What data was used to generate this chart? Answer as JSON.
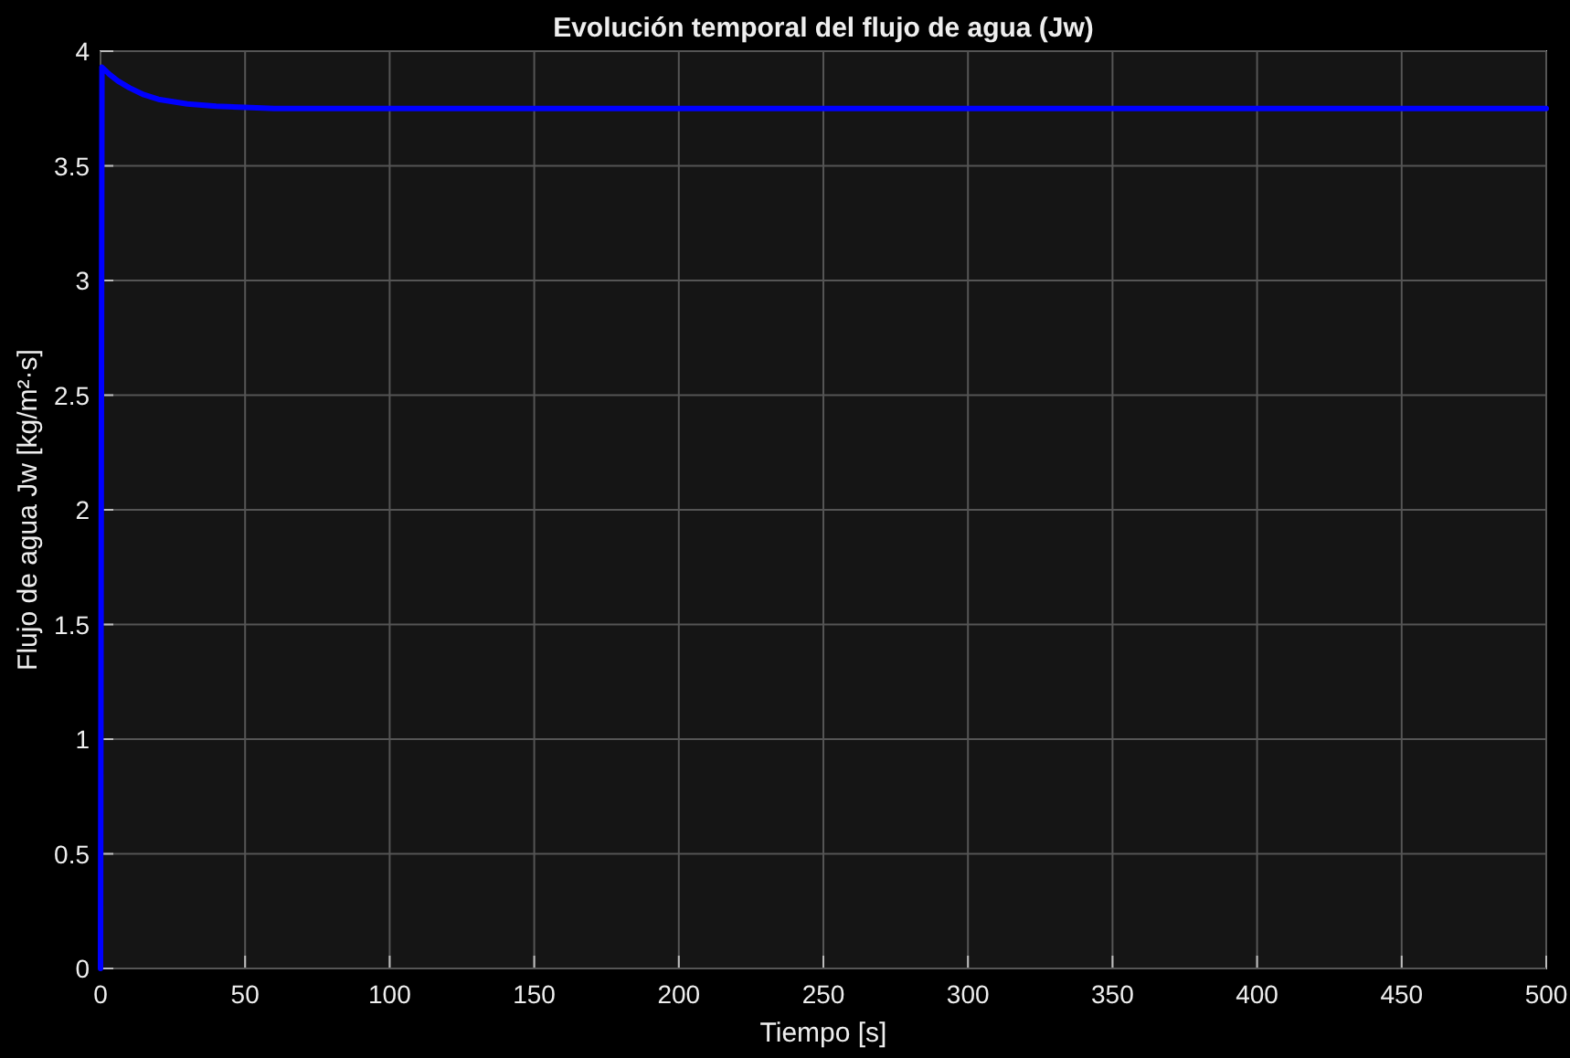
{
  "chart_data": {
    "type": "line",
    "title": "Evolución temporal del flujo de agua (Jw)",
    "xlabel": "Tiempo [s]",
    "ylabel": "Flujo de agua Jw [kg/m²·s]",
    "series": [
      {
        "color": "#0000ff",
        "x": [
          0,
          0.5,
          3,
          6,
          10,
          15,
          20,
          25,
          30,
          40,
          50,
          60,
          80,
          100,
          200,
          300,
          400,
          500
        ],
        "values": [
          0,
          3.93,
          3.9,
          3.87,
          3.84,
          3.81,
          3.79,
          3.78,
          3.77,
          3.76,
          3.755,
          3.75,
          3.75,
          3.75,
          3.75,
          3.75,
          3.75,
          3.75
        ]
      }
    ],
    "xlim": [
      0,
      500
    ],
    "xticks": [
      0,
      50,
      100,
      150,
      200,
      250,
      300,
      350,
      400,
      450,
      500
    ],
    "ylim": [
      0,
      4
    ],
    "yticks": [
      0,
      0.5,
      1,
      1.5,
      2,
      2.5,
      3,
      3.5,
      4
    ],
    "grid": true,
    "marker": "none",
    "line_style": "solid"
  }
}
